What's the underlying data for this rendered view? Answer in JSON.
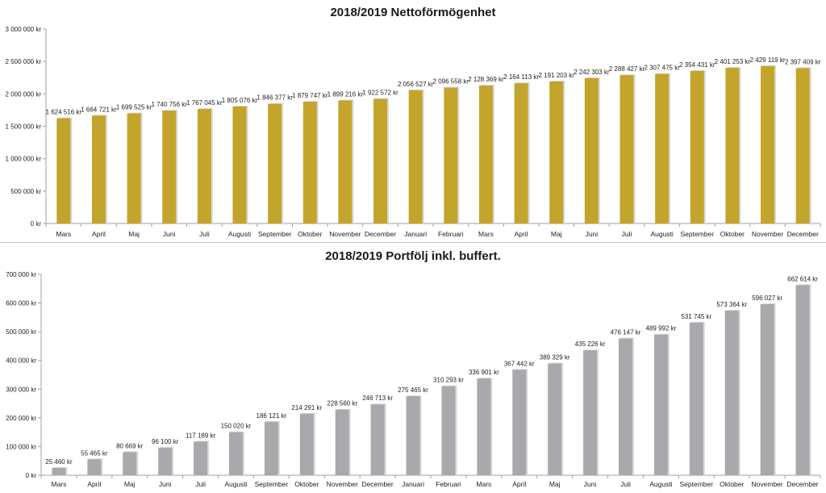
{
  "chart_data": [
    {
      "type": "bar",
      "title": "2018/2019 Nettoförmögenhet",
      "categories": [
        "Mars",
        "April",
        "Maj",
        "Juni",
        "Juli",
        "Augusti",
        "September",
        "Oktober",
        "November",
        "December",
        "Januari",
        "Februari",
        "Mars",
        "April",
        "Maj",
        "Juni",
        "Juli",
        "Augusti",
        "September",
        "Oktober",
        "November",
        "December"
      ],
      "values": [
        1624516,
        1664721,
        1699525,
        1740756,
        1767045,
        1805076,
        1846377,
        1879747,
        1899216,
        1922572,
        2056527,
        2096558,
        2128369,
        2164113,
        2191203,
        2242303,
        2288427,
        2307475,
        2354431,
        2401253,
        2429119,
        2397409
      ],
      "value_labels": [
        "1 624 516 kr",
        "1 664 721 kr",
        "1 699 525 kr",
        "1 740 756 kr",
        "1 767 045 kr",
        "1 805 076 kr",
        "1 846 377 kr",
        "1 879 747 kr",
        "1 899 216 kr",
        "1 922 572 kr",
        "2 056 527 kr",
        "2 096 558 kr",
        "2 128 369 kr",
        "2 164 113 kr",
        "2 191 203 kr",
        "2 242 303 kr",
        "2 288 427 kr",
        "2 307 475 kr",
        "2 354 431 kr",
        "2 401 253 kr",
        "2 429 119 kr",
        "2 397 409 kr"
      ],
      "ylim": [
        0,
        3000000
      ],
      "yticks": [
        0,
        500000,
        1000000,
        1500000,
        2000000,
        2500000,
        3000000
      ],
      "ytick_labels": [
        "0 kr",
        "500 000 kr",
        "1 000 000 kr",
        "1 500 000 kr",
        "2 000 000 kr",
        "2 500 000 kr",
        "3 000 000 kr"
      ],
      "grid": false,
      "bar_color": "#c3a52b"
    },
    {
      "type": "bar",
      "title": "2018/2019 Portfölj inkl. buffert.",
      "categories": [
        "Mars",
        "April",
        "Maj",
        "Juni",
        "Juli",
        "Augusti",
        "September",
        "Oktober",
        "November",
        "December",
        "Januari",
        "Februari",
        "Mars",
        "April",
        "Maj",
        "Juni",
        "Juli",
        "Augusti",
        "September",
        "Oktober",
        "November",
        "December"
      ],
      "values": [
        25460,
        55465,
        80669,
        96100,
        117189,
        150020,
        186121,
        214291,
        228560,
        246713,
        275465,
        310293,
        336901,
        367442,
        389329,
        435226,
        476147,
        489992,
        531745,
        573364,
        596027,
        662614
      ],
      "value_labels": [
        "25 460 kr",
        "55 465 kr",
        "80 669 kr",
        "96 100 kr",
        "117 189 kr",
        "150 020 kr",
        "186 121 kr",
        "214 291 kr",
        "228 560 kr",
        "246 713 kr",
        "275 465 kr",
        "310 293 kr",
        "336 901 kr",
        "367 442 kr",
        "389 329 kr",
        "435 226 kr",
        "476 147 kr",
        "489 992 kr",
        "531 745 kr",
        "573 364 kr",
        "596 027 kr",
        "662 614 kr"
      ],
      "ylim": [
        0,
        700000
      ],
      "yticks": [
        0,
        100000,
        200000,
        300000,
        400000,
        500000,
        600000,
        700000
      ],
      "ytick_labels": [
        "0 kr",
        "100 000 kr",
        "200 000 kr",
        "300 000 kr",
        "400 000 kr",
        "500 000 kr",
        "600 000 kr",
        "700 000 kr"
      ],
      "grid": false,
      "bar_color": "#a7a9ac"
    }
  ]
}
